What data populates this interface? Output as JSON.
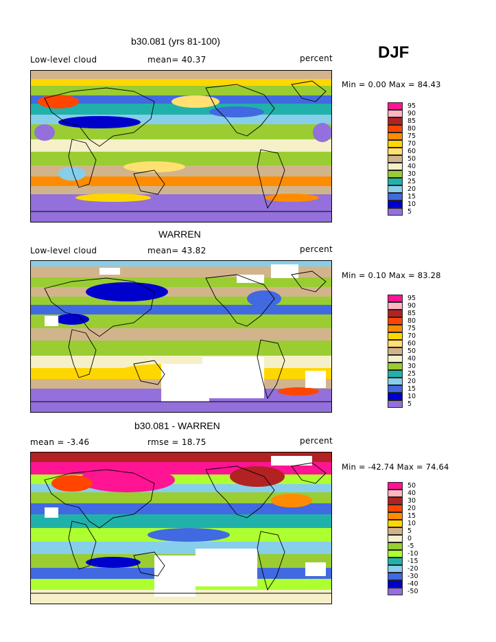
{
  "season": "DJF",
  "panels": [
    {
      "title": "b30.081 (yrs 81-100)",
      "left_label": "Low-level cloud",
      "mid_label": "mean=  40.37",
      "right_label": "percent",
      "minmax": "Min =   0.00 Max =  84.43",
      "colorbar_ticks": [
        "95",
        "90",
        "85",
        "80",
        "75",
        "70",
        "60",
        "50",
        "40",
        "30",
        "25",
        "20",
        "15",
        "10",
        "5"
      ]
    },
    {
      "title": "WARREN",
      "left_label": "Low-level cloud",
      "mid_label": "mean=  43.82",
      "right_label": "percent",
      "minmax": "Min =   0.10 Max =  83.28",
      "colorbar_ticks": [
        "95",
        "90",
        "85",
        "80",
        "75",
        "70",
        "60",
        "50",
        "40",
        "30",
        "25",
        "20",
        "15",
        "10",
        "5"
      ]
    },
    {
      "title": "b30.081 - WARREN",
      "left_label": "mean =  -3.46",
      "mid_label": "rmse =  18.75",
      "right_label": "percent",
      "minmax": "Min = -42.74 Max =  74.64",
      "colorbar_ticks": [
        "50",
        "40",
        "30",
        "20",
        "15",
        "10",
        "5",
        "0",
        "-5",
        "-10",
        "-15",
        "-20",
        "-30",
        "-40",
        "-50"
      ]
    }
  ],
  "colors": {
    "abs_scale": [
      "#ff1493",
      "#ffb6c1",
      "#b22222",
      "#ff4500",
      "#ff8c00",
      "#ffd700",
      "#ffe070",
      "#d2b48c",
      "#f5f0c8",
      "#9acd32",
      "#20b2aa",
      "#87ceeb",
      "#4169e1",
      "#0000cd",
      "#9370db"
    ],
    "diff_scale": [
      "#ff1493",
      "#ffb6c1",
      "#b22222",
      "#ff4500",
      "#ff8c00",
      "#ffd700",
      "#d2b48c",
      "#f5f0c8",
      "#9acd32",
      "#adff2f",
      "#20b2aa",
      "#87ceeb",
      "#4169e1",
      "#0000cd",
      "#9370db"
    ]
  },
  "chart_data": [
    {
      "type": "heatmap",
      "title": "b30.081 (yrs 81-100)",
      "variable": "Low-level cloud",
      "units": "percent",
      "mean": 40.37,
      "min": 0.0,
      "max": 84.43,
      "levels": [
        5,
        10,
        15,
        20,
        25,
        30,
        40,
        50,
        60,
        70,
        75,
        80,
        85,
        90,
        95
      ],
      "note": "global map, DJF season"
    },
    {
      "type": "heatmap",
      "title": "WARREN",
      "variable": "Low-level cloud",
      "units": "percent",
      "mean": 43.82,
      "min": 0.1,
      "max": 83.28,
      "levels": [
        5,
        10,
        15,
        20,
        25,
        30,
        40,
        50,
        60,
        70,
        75,
        80,
        85,
        90,
        95
      ]
    },
    {
      "type": "heatmap",
      "title": "b30.081 - WARREN",
      "units": "percent",
      "mean": -3.46,
      "rmse": 18.75,
      "min": -42.74,
      "max": 74.64,
      "levels": [
        -50,
        -40,
        -30,
        -20,
        -15,
        -10,
        -5,
        0,
        5,
        10,
        15,
        20,
        30,
        40,
        50
      ]
    }
  ]
}
